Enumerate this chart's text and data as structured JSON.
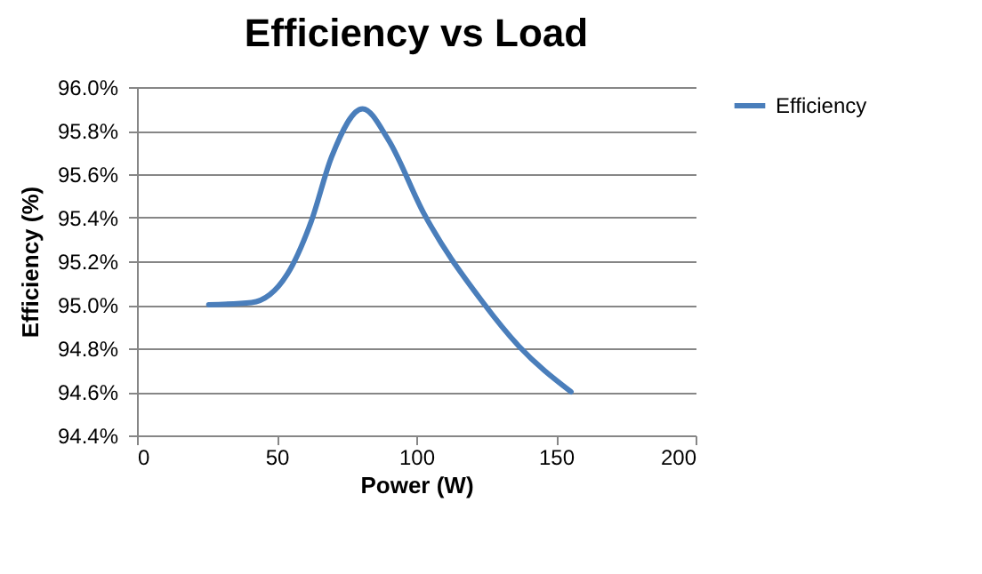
{
  "chart_data": {
    "type": "line",
    "title": "Efficiency vs Load",
    "xlabel": "Power (W)",
    "ylabel": "Efficiency (%)",
    "x": [
      25.7,
      41,
      53.8,
      62.3,
      69.7,
      80.8,
      89.9,
      102.7,
      123.9,
      136.7,
      155.4
    ],
    "series": [
      {
        "name": "Efficiency",
        "color": "#4a7ebb",
        "values": [
          95.0,
          95.01,
          95.14,
          95.38,
          95.68,
          95.9,
          95.76,
          95.42,
          95.01,
          94.81,
          94.6
        ]
      }
    ],
    "xlim": [
      0,
      200
    ],
    "xticks": [
      0,
      50,
      100,
      150,
      200
    ],
    "ylim": [
      94.4,
      96.0
    ],
    "yticks": [
      {
        "value": 94.4,
        "label": "94.4%"
      },
      {
        "value": 94.6,
        "label": "94.6%"
      },
      {
        "value": 94.8,
        "label": "94.8%"
      },
      {
        "value": 95.0,
        "label": "95.0%"
      },
      {
        "value": 95.2,
        "label": "95.2%"
      },
      {
        "value": 95.4,
        "label": "95.4%"
      },
      {
        "value": 95.6,
        "label": "95.6%"
      },
      {
        "value": 95.8,
        "label": "95.8%"
      },
      {
        "value": 96.0,
        "label": "96.0%"
      }
    ],
    "grid": "y",
    "legend": "right",
    "marker": "none",
    "line_style": "solid"
  }
}
